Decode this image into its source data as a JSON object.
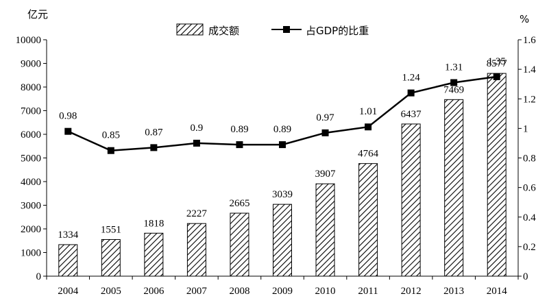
{
  "chart_data": {
    "type": "bar",
    "categories": [
      "2004",
      "2005",
      "2006",
      "2007",
      "2008",
      "2009",
      "2010",
      "2011",
      "2012",
      "2013",
      "2014"
    ],
    "series": [
      {
        "name": "成交额",
        "type": "bar",
        "axis": "left",
        "values": [
          1334,
          1551,
          1818,
          2227,
          2665,
          3039,
          3907,
          4764,
          6437,
          7469,
          8577
        ],
        "labels": [
          "1334",
          "1551",
          "1818",
          "2227",
          "2665",
          "3039",
          "3907",
          "4764",
          "6437",
          "7469",
          "8577"
        ]
      },
      {
        "name": "占GDP的比重",
        "type": "line",
        "axis": "right",
        "values": [
          0.98,
          0.85,
          0.87,
          0.9,
          0.89,
          0.89,
          0.97,
          1.01,
          1.24,
          1.31,
          1.35
        ],
        "labels": [
          "0.98",
          "0.85",
          "0.87",
          "0.9",
          "0.89",
          "0.89",
          "0.97",
          "1.01",
          "1.24",
          "1.31",
          "1.35"
        ]
      }
    ],
    "y_left": {
      "unit": "亿元",
      "ylim": [
        0,
        10000
      ],
      "ticks": [
        "0",
        "1000",
        "2000",
        "3000",
        "4000",
        "5000",
        "6000",
        "7000",
        "8000",
        "9000",
        "10000"
      ]
    },
    "y_right": {
      "unit": "%",
      "ylim": [
        0,
        1.6
      ],
      "ticks": [
        "0",
        "0.2",
        "0.4",
        "0.6",
        "0.8",
        "1",
        "1.2",
        "1.4",
        "1.6"
      ]
    },
    "legend_position": "top-center",
    "grid": false
  }
}
